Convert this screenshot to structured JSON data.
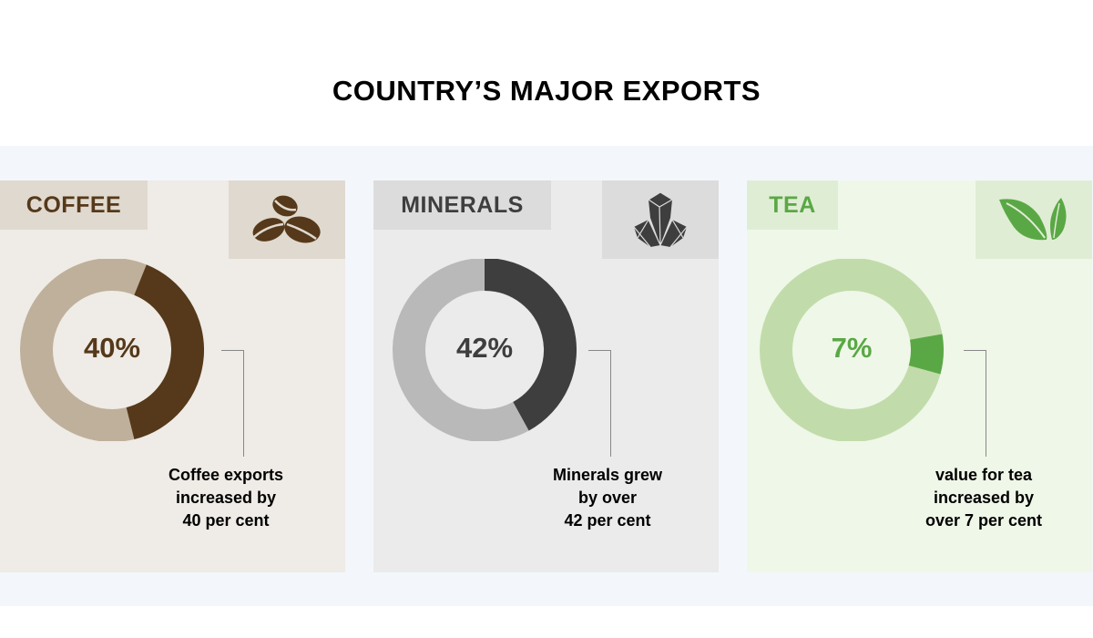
{
  "title": "COUNTRY’S MAJOR EXPORTS",
  "chart_data": [
    {
      "type": "pie",
      "label": "COFFEE",
      "value": 40,
      "value_label": "40%",
      "caption": [
        "Coffee exports",
        "increased by",
        "40 per cent"
      ],
      "icon": "coffee-beans-icon",
      "colors": {
        "panel": "#efebe6",
        "box": "#e0d9cf",
        "highlight": "#55391a",
        "rest": "#bfb09b",
        "text": "#55391a"
      }
    },
    {
      "type": "pie",
      "label": "MINERALS",
      "value": 42,
      "value_label": "42%",
      "caption": [
        "Minerals grew",
        "by over",
        "42 per cent"
      ],
      "icon": "crystal-icon",
      "colors": {
        "panel": "#ebebeb",
        "box": "#dcdcdc",
        "highlight": "#3e3e3e",
        "rest": "#b9b9b9",
        "text": "#3e3e3e"
      }
    },
    {
      "type": "pie",
      "label": "TEA",
      "value": 7,
      "value_label": "7%",
      "caption": [
        "value for tea",
        "increased by",
        "over 7 per cent"
      ],
      "icon": "tea-leaves-icon",
      "colors": {
        "panel": "#eff7e8",
        "box": "#e0edd5",
        "highlight": "#5aa845",
        "rest": "#c1dcaa",
        "text": "#5aa845"
      }
    }
  ]
}
